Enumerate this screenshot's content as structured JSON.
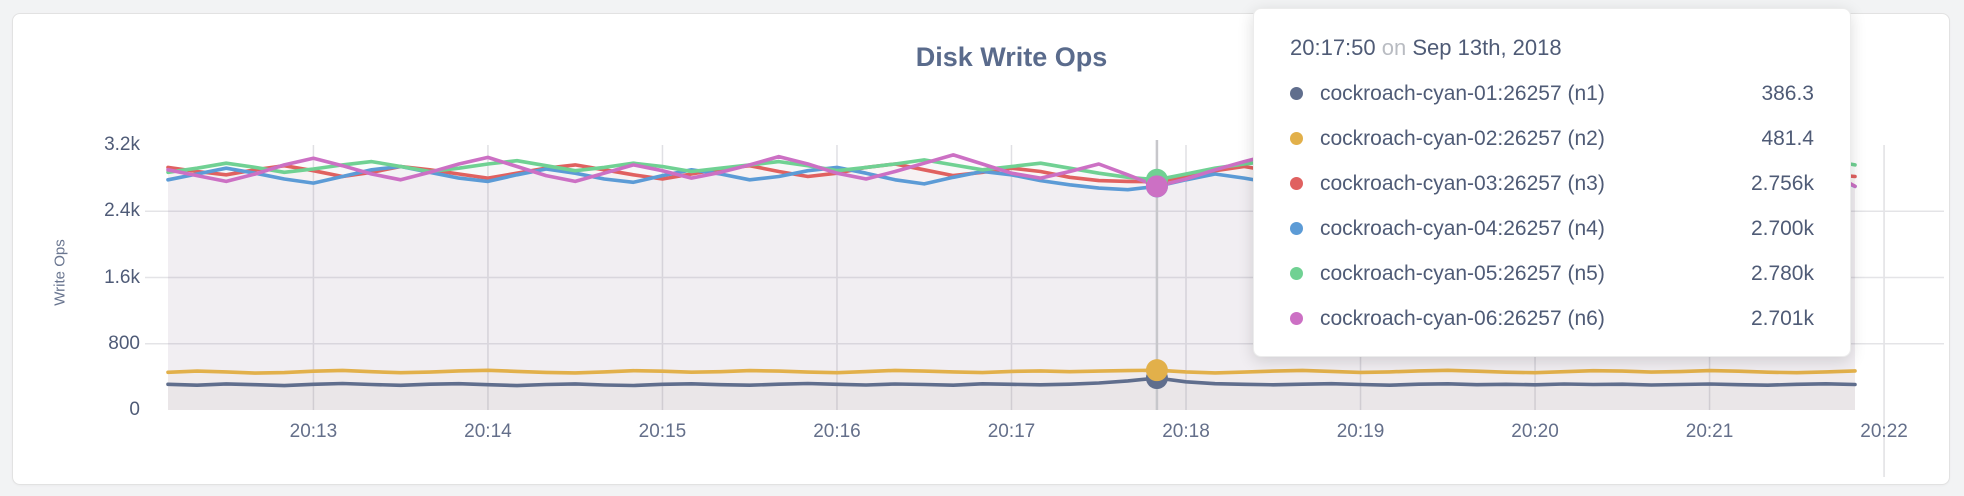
{
  "page": {
    "background": "#f2f3f4"
  },
  "tooltip": {
    "time": "20:17:50",
    "separator": "on",
    "date": "Sep 13th, 2018"
  },
  "chart_data": {
    "type": "area",
    "title": "Disk Write Ops",
    "ylabel": "Write Ops",
    "ylim": [
      0,
      3200
    ],
    "grid": true,
    "x_start_time": "20:12:10",
    "x_step_seconds": 10,
    "hover_index": 34,
    "hover_time": "20:17:50",
    "y_ticks": {
      "labels": [
        "3.2k",
        "2.4k",
        "1.6k",
        "800",
        "0"
      ],
      "values": [
        3200,
        2400,
        1600,
        800,
        0
      ]
    },
    "x_ticks": {
      "labels": [
        "20:13",
        "20:14",
        "20:15",
        "20:16",
        "20:17",
        "20:18",
        "20:19",
        "20:20",
        "20:21",
        "20:22"
      ],
      "first_offset_seconds": 50,
      "interval_seconds": 60
    },
    "series": [
      {
        "name": "cockroach-cyan-01:26257 (n1)",
        "color": "#606e8d",
        "hover_value_label": "386.3",
        "values": [
          310,
          300,
          315,
          305,
          295,
          310,
          320,
          308,
          298,
          312,
          318,
          305,
          295,
          308,
          315,
          302,
          296,
          310,
          316,
          306,
          300,
          312,
          320,
          310,
          302,
          314,
          308,
          300,
          316,
          310,
          304,
          312,
          326,
          352,
          386,
          340,
          318,
          310,
          304,
          312,
          318,
          308,
          300,
          312,
          316,
          306,
          310,
          304,
          314,
          308,
          312,
          302,
          308,
          314,
          306,
          300,
          310,
          316,
          308
        ]
      },
      {
        "name": "cockroach-cyan-02:26257 (n2)",
        "color": "#e2b04a",
        "hover_value_label": "481.4",
        "values": [
          455,
          470,
          460,
          445,
          452,
          468,
          478,
          462,
          450,
          458,
          472,
          480,
          466,
          454,
          448,
          460,
          474,
          468,
          456,
          462,
          476,
          470,
          458,
          450,
          464,
          478,
          470,
          460,
          452,
          466,
          472,
          462,
          470,
          476,
          481,
          460,
          448,
          458,
          470,
          478,
          466,
          454,
          460,
          472,
          480,
          468,
          456,
          450,
          462,
          474,
          470,
          458,
          464,
          476,
          468,
          456,
          450,
          460,
          472
        ]
      },
      {
        "name": "cockroach-cyan-03:26257 (n3)",
        "color": "#e06160",
        "hover_value_label": "2.756k",
        "values": [
          2930,
          2880,
          2840,
          2900,
          2950,
          2890,
          2820,
          2870,
          2940,
          2900,
          2850,
          2800,
          2860,
          2920,
          2960,
          2900,
          2840,
          2790,
          2850,
          2910,
          2950,
          2880,
          2820,
          2860,
          2930,
          2970,
          2900,
          2830,
          2870,
          2920,
          2880,
          2810,
          2770,
          2760,
          2756,
          2820,
          2890,
          2940,
          2880,
          2820,
          2860,
          2930,
          2900,
          2840,
          2800,
          2870,
          2940,
          2960,
          2890,
          2830,
          2870,
          2930,
          2890,
          2840,
          2880,
          2940,
          2900,
          2850,
          2820
        ]
      },
      {
        "name": "cockroach-cyan-04:26257 (n4)",
        "color": "#5c9bd6",
        "hover_value_label": "2.700k",
        "values": [
          2780,
          2850,
          2920,
          2860,
          2790,
          2740,
          2820,
          2900,
          2940,
          2870,
          2800,
          2760,
          2840,
          2910,
          2860,
          2790,
          2750,
          2830,
          2900,
          2850,
          2780,
          2820,
          2890,
          2930,
          2860,
          2780,
          2730,
          2810,
          2880,
          2840,
          2770,
          2720,
          2680,
          2660,
          2700,
          2780,
          2850,
          2800,
          2740,
          2790,
          2870,
          2910,
          2840,
          2770,
          2730,
          2810,
          2880,
          2920,
          2850,
          2780,
          2740,
          2820,
          2890,
          2840,
          2780,
          2830,
          2900,
          2860,
          2700
        ]
      },
      {
        "name": "cockroach-cyan-05:26257 (n5)",
        "color": "#70d193",
        "hover_value_label": "2.780k",
        "values": [
          2870,
          2920,
          2980,
          2930,
          2870,
          2910,
          2960,
          3000,
          2940,
          2880,
          2920,
          2970,
          3010,
          2950,
          2890,
          2930,
          2980,
          2940,
          2880,
          2920,
          2960,
          3000,
          2950,
          2890,
          2930,
          2970,
          3020,
          2960,
          2900,
          2940,
          2980,
          2920,
          2860,
          2810,
          2780,
          2850,
          2920,
          2970,
          3010,
          2950,
          2890,
          2930,
          2980,
          2940,
          2880,
          2920,
          2960,
          3000,
          2940,
          2880,
          2920,
          2960,
          3010,
          2950,
          2890,
          2930,
          2970,
          3020,
          2960
        ]
      },
      {
        "name": "cockroach-cyan-06:26257 (n6)",
        "color": "#cc70c4",
        "hover_value_label": "2.701k",
        "values": [
          2900,
          2830,
          2760,
          2850,
          2960,
          3040,
          2950,
          2850,
          2780,
          2870,
          2970,
          3050,
          2940,
          2830,
          2760,
          2860,
          2960,
          2890,
          2800,
          2870,
          2960,
          3060,
          2970,
          2860,
          2790,
          2880,
          2980,
          3080,
          2970,
          2860,
          2800,
          2880,
          2970,
          2840,
          2701,
          2790,
          2900,
          3000,
          3090,
          2960,
          2850,
          2780,
          2870,
          2970,
          3050,
          2940,
          2830,
          2770,
          2860,
          2960,
          2890,
          2810,
          2880,
          2980,
          3060,
          2950,
          2840,
          2900,
          2701
        ]
      }
    ]
  }
}
